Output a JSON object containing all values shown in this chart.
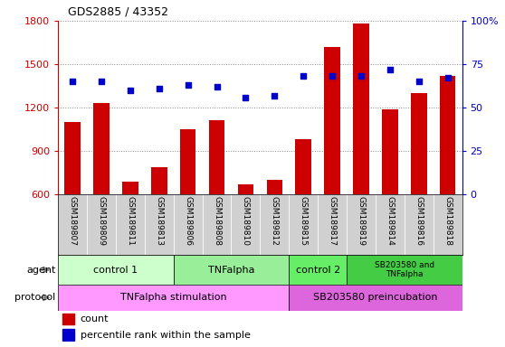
{
  "title": "GDS2885 / 43352",
  "samples": [
    "GSM189807",
    "GSM189809",
    "GSM189811",
    "GSM189813",
    "GSM189806",
    "GSM189808",
    "GSM189810",
    "GSM189812",
    "GSM189815",
    "GSM189817",
    "GSM189819",
    "GSM189814",
    "GSM189816",
    "GSM189818"
  ],
  "counts": [
    1100,
    1230,
    690,
    790,
    1050,
    1110,
    670,
    700,
    980,
    1620,
    1780,
    1185,
    1300,
    1420
  ],
  "percentile": [
    65,
    65,
    60,
    61,
    63,
    62,
    56,
    57,
    68,
    68,
    68,
    72,
    65,
    67
  ],
  "ylim_left": [
    600,
    1800
  ],
  "ylim_right": [
    0,
    100
  ],
  "yticks_left": [
    600,
    900,
    1200,
    1500,
    1800
  ],
  "yticks_right": [
    0,
    25,
    50,
    75,
    100
  ],
  "agent_groups": [
    {
      "label": "control 1",
      "start": 0,
      "end": 3,
      "color": "#ccffcc"
    },
    {
      "label": "TNFalpha",
      "start": 4,
      "end": 7,
      "color": "#99ee99"
    },
    {
      "label": "control 2",
      "start": 8,
      "end": 9,
      "color": "#66ee66"
    },
    {
      "label": "SB203580 and\nTNFalpha",
      "start": 10,
      "end": 13,
      "color": "#44cc44"
    }
  ],
  "protocol_groups": [
    {
      "label": "TNFalpha stimulation",
      "start": 0,
      "end": 7,
      "color": "#ff99ff"
    },
    {
      "label": "SB203580 preincubation",
      "start": 8,
      "end": 13,
      "color": "#dd66dd"
    }
  ],
  "bar_color": "#cc0000",
  "scatter_color": "#0000cc",
  "grid_color": "#888888",
  "ylabel_left_color": "#cc0000",
  "ylabel_right_color": "#0000cc",
  "label_bg": "#d0d0d0",
  "label_sep": "#ffffff"
}
